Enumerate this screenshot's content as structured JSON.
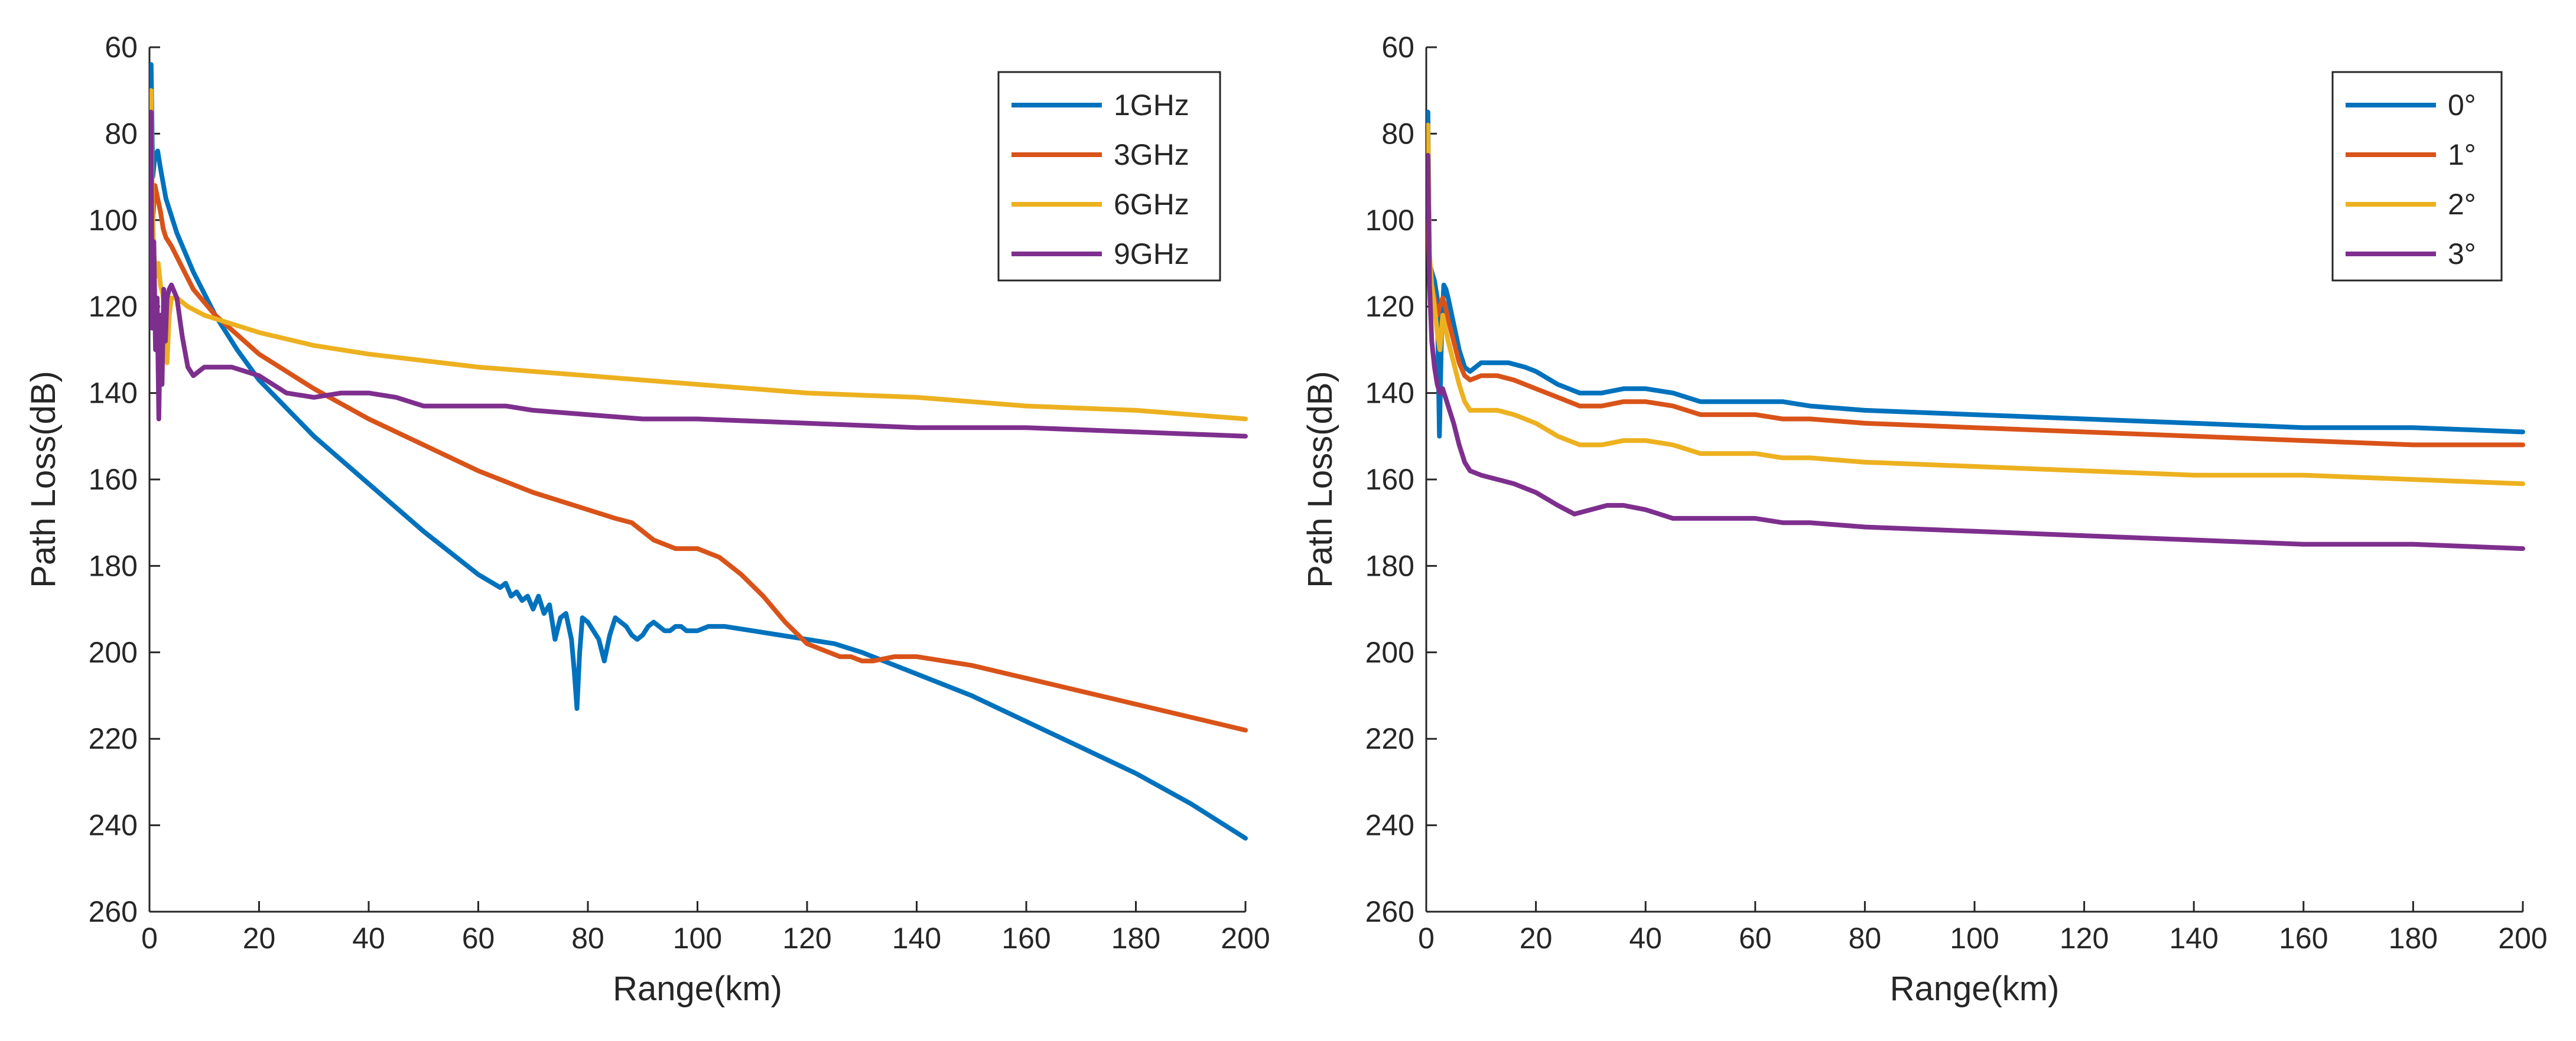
{
  "chart_data": [
    {
      "type": "line",
      "title": "",
      "xlabel": "Range(km)",
      "ylabel": "Path Loss(dB)",
      "xlim": [
        0,
        200
      ],
      "ylim": [
        60,
        260
      ],
      "y_reversed": true,
      "xticks": [
        "0",
        "20",
        "40",
        "60",
        "80",
        "100",
        "120",
        "140",
        "160",
        "180",
        "200"
      ],
      "yticks": [
        "60",
        "80",
        "100",
        "120",
        "140",
        "160",
        "180",
        "200",
        "220",
        "240",
        "260"
      ],
      "legend_position": "top-right",
      "series": [
        {
          "name": "1GHz",
          "color": "#0072BD",
          "x": [
            0.3,
            0.6,
            1,
            1.5,
            2,
            3,
            5,
            8,
            12,
            16,
            20,
            30,
            40,
            50,
            60,
            64,
            65,
            66,
            67,
            68,
            69,
            70,
            71,
            72,
            73,
            74,
            75,
            76,
            77,
            77.5,
            78,
            78.5,
            79,
            80,
            81,
            82,
            83,
            84,
            85,
            86,
            87,
            88,
            89,
            90,
            91,
            92,
            93,
            94,
            95,
            96,
            97,
            98,
            100,
            102,
            105,
            110,
            115,
            120,
            125,
            130,
            140,
            150,
            160,
            170,
            180,
            190,
            200
          ],
          "y": [
            64,
            90,
            85,
            84,
            88,
            95,
            103,
            112,
            122,
            130,
            137,
            150,
            161,
            172,
            182,
            185,
            184,
            187,
            186,
            188,
            187,
            190,
            187,
            191,
            189,
            197,
            192,
            191,
            197,
            204,
            213,
            200,
            192,
            193,
            195,
            197,
            202,
            196,
            192,
            193,
            194,
            196,
            197,
            196,
            194,
            193,
            194,
            195,
            195,
            194,
            194,
            195,
            195,
            194,
            194,
            195,
            196,
            197,
            198,
            200,
            205,
            210,
            216,
            222,
            228,
            235,
            243
          ]
        },
        {
          "name": "3GHz",
          "color": "#D95319",
          "x": [
            0.3,
            0.6,
            1,
            1.5,
            2,
            2.5,
            3,
            4,
            6,
            8,
            12,
            20,
            30,
            40,
            50,
            60,
            70,
            80,
            85,
            88,
            90,
            92,
            94,
            96,
            100,
            104,
            108,
            112,
            116,
            120,
            124,
            126,
            128,
            130,
            132,
            136,
            140,
            145,
            150,
            160,
            170,
            180,
            190,
            200
          ],
          "y": [
            88,
            100,
            92,
            95,
            98,
            102,
            104,
            106,
            111,
            116,
            122,
            131,
            139,
            146,
            152,
            158,
            163,
            167,
            169,
            170,
            172,
            174,
            175,
            176,
            176,
            178,
            182,
            187,
            193,
            198,
            200,
            201,
            201,
            202,
            202,
            201,
            201,
            202,
            203,
            206,
            209,
            212,
            215,
            218
          ]
        },
        {
          "name": "6GHz",
          "color": "#EDB120",
          "x": [
            0.3,
            0.5,
            0.8,
            1.2,
            1.6,
            2,
            2.4,
            2.8,
            3.2,
            3.6,
            4,
            5,
            7,
            10,
            15,
            20,
            30,
            40,
            60,
            80,
            100,
            120,
            140,
            160,
            180,
            200
          ],
          "y": [
            70,
            95,
            108,
            113,
            110,
            115,
            117,
            121,
            133,
            122,
            118,
            118,
            120,
            122,
            124,
            126,
            129,
            131,
            134,
            136,
            138,
            140,
            141,
            143,
            144,
            146
          ]
        },
        {
          "name": "9GHz",
          "color": "#7E2F8E",
          "x": [
            0.3,
            0.5,
            0.8,
            1.1,
            1.4,
            1.7,
            2,
            2.3,
            2.6,
            2.9,
            3.2,
            3.6,
            4,
            5,
            6,
            7,
            8,
            10,
            12,
            15,
            20,
            25,
            30,
            35,
            40,
            45,
            50,
            55,
            60,
            65,
            70,
            80,
            90,
            100,
            120,
            140,
            160,
            180,
            200
          ],
          "y": [
            75,
            125,
            105,
            130,
            118,
            146,
            122,
            138,
            116,
            128,
            118,
            116,
            115,
            118,
            127,
            134,
            136,
            134,
            134,
            134,
            136,
            140,
            141,
            140,
            140,
            141,
            143,
            143,
            143,
            143,
            144,
            145,
            146,
            146,
            147,
            148,
            148,
            149,
            150
          ]
        }
      ]
    },
    {
      "type": "line",
      "title": "",
      "xlabel": "Range(km)",
      "ylabel": "Path Loss(dB)",
      "xlim": [
        0,
        200
      ],
      "ylim": [
        60,
        260
      ],
      "y_reversed": true,
      "xticks": [
        "0",
        "20",
        "40",
        "60",
        "80",
        "100",
        "120",
        "140",
        "160",
        "180",
        "200"
      ],
      "yticks": [
        "60",
        "80",
        "100",
        "120",
        "140",
        "160",
        "180",
        "200",
        "220",
        "240",
        "260"
      ],
      "legend_position": "top-right",
      "series": [
        {
          "name": "0°",
          "color": "#0072BD",
          "x": [
            0.3,
            0.6,
            1,
            1.5,
            2,
            2.4,
            2.8,
            3.2,
            3.6,
            4,
            5,
            6,
            7,
            8,
            10,
            12,
            15,
            18,
            20,
            24,
            28,
            32,
            36,
            40,
            45,
            50,
            55,
            60,
            65,
            70,
            80,
            100,
            120,
            140,
            160,
            180,
            200
          ],
          "y": [
            75,
            110,
            112,
            114,
            118,
            150,
            125,
            115,
            116,
            118,
            124,
            130,
            134,
            135,
            133,
            133,
            133,
            134,
            135,
            138,
            140,
            140,
            139,
            139,
            140,
            142,
            142,
            142,
            142,
            143,
            144,
            145,
            146,
            147,
            148,
            148,
            149
          ]
        },
        {
          "name": "1°",
          "color": "#D95319",
          "x": [
            0.3,
            0.6,
            1,
            1.5,
            2,
            2.5,
            3,
            3.5,
            4,
            5,
            6,
            7,
            8,
            10,
            13,
            16,
            20,
            24,
            28,
            32,
            36,
            40,
            45,
            50,
            55,
            60,
            65,
            70,
            80,
            100,
            120,
            140,
            160,
            180,
            200
          ],
          "y": [
            100,
            112,
            115,
            118,
            122,
            120,
            118,
            120,
            123,
            128,
            133,
            136,
            137,
            136,
            136,
            137,
            139,
            141,
            143,
            143,
            142,
            142,
            143,
            145,
            145,
            145,
            146,
            146,
            147,
            148,
            149,
            150,
            151,
            152,
            152
          ]
        },
        {
          "name": "2°",
          "color": "#EDB120",
          "x": [
            0.3,
            0.6,
            1,
            1.5,
            2,
            2.5,
            3,
            4,
            5,
            6,
            7,
            8,
            10,
            13,
            16,
            20,
            24,
            28,
            32,
            36,
            40,
            45,
            50,
            55,
            60,
            65,
            70,
            80,
            100,
            120,
            140,
            160,
            180,
            200
          ],
          "y": [
            78,
            108,
            115,
            120,
            126,
            130,
            122,
            128,
            133,
            138,
            142,
            144,
            144,
            144,
            145,
            147,
            150,
            152,
            152,
            151,
            151,
            152,
            154,
            154,
            154,
            155,
            155,
            156,
            157,
            158,
            159,
            159,
            160,
            161
          ]
        },
        {
          "name": "3°",
          "color": "#7E2F8E",
          "x": [
            0.3,
            0.6,
            1,
            1.5,
            2,
            2.5,
            3,
            3.5,
            4,
            5,
            6,
            7,
            8,
            10,
            13,
            16,
            20,
            24,
            27,
            30,
            33,
            36,
            40,
            45,
            50,
            55,
            60,
            65,
            70,
            80,
            100,
            120,
            140,
            160,
            180,
            200
          ],
          "y": [
            85,
            115,
            128,
            134,
            138,
            140,
            139,
            141,
            143,
            147,
            152,
            156,
            158,
            159,
            160,
            161,
            163,
            166,
            168,
            167,
            166,
            166,
            167,
            169,
            169,
            169,
            169,
            170,
            170,
            171,
            172,
            173,
            174,
            175,
            175,
            176
          ]
        }
      ]
    }
  ]
}
